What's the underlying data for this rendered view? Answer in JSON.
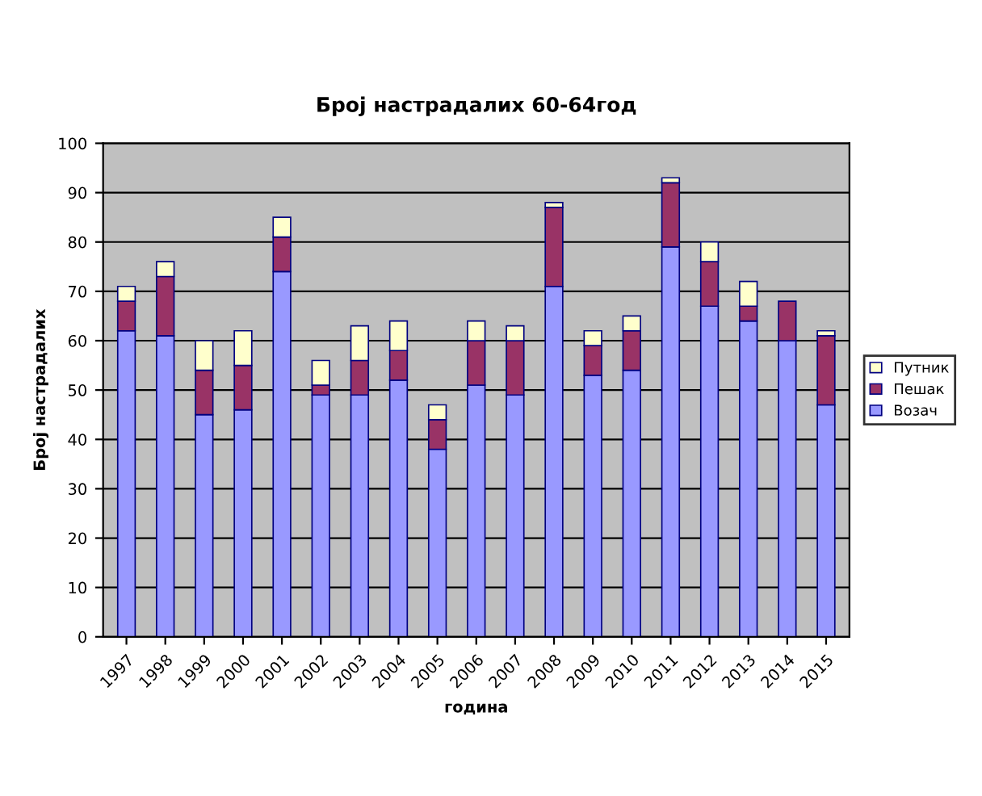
{
  "chart_data": {
    "type": "bar",
    "stacked": true,
    "title": "Број настрадалих 60-64год",
    "xlabel": "година",
    "ylabel": "Број настрадалих",
    "categories": [
      "1997",
      "1998",
      "1999",
      "2000",
      "2001",
      "2002",
      "2003",
      "2004",
      "2005",
      "2006",
      "2007",
      "2008",
      "2009",
      "2010",
      "2011",
      "2012",
      "2013",
      "2014",
      "2015"
    ],
    "series": [
      {
        "name": "Возач",
        "color": "#9999ff",
        "values": [
          62,
          61,
          45,
          46,
          74,
          49,
          49,
          52,
          38,
          51,
          49,
          71,
          53,
          54,
          79,
          67,
          64,
          60,
          47
        ]
      },
      {
        "name": "Пешак",
        "color": "#993366",
        "values": [
          6,
          12,
          9,
          9,
          7,
          2,
          7,
          6,
          6,
          9,
          11,
          16,
          6,
          8,
          13,
          9,
          3,
          8,
          14
        ]
      },
      {
        "name": "Путник",
        "color": "#ffffcc",
        "values": [
          3,
          3,
          6,
          7,
          4,
          5,
          7,
          6,
          3,
          4,
          3,
          1,
          3,
          3,
          1,
          4,
          5,
          null,
          1
        ]
      }
    ],
    "ylim": [
      0,
      100
    ],
    "yticks": [
      0,
      10,
      20,
      30,
      40,
      50,
      60,
      70,
      80,
      90,
      100
    ],
    "grid": "y",
    "legend": "right"
  }
}
